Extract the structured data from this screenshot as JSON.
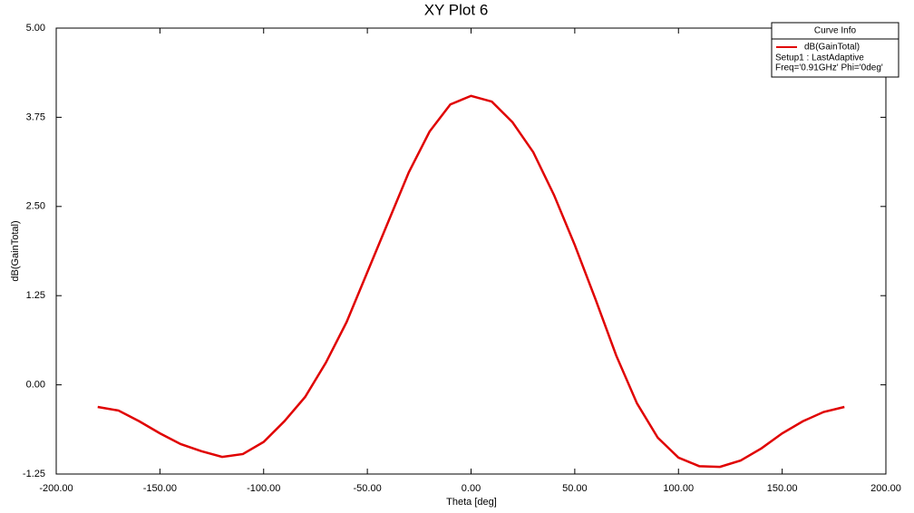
{
  "chart_data": {
    "type": "line",
    "title": "XY Plot 6",
    "x_label": "Theta [deg]",
    "y_label": "dB(GainTotal)",
    "x": [
      -180,
      -170,
      -160,
      -150,
      -140,
      -130,
      -120,
      -110,
      -100,
      -90,
      -80,
      -70,
      -60,
      -50,
      -40,
      -30,
      -20,
      -10,
      0,
      10,
      20,
      30,
      40,
      50,
      60,
      70,
      80,
      90,
      100,
      110,
      120,
      130,
      140,
      150,
      160,
      170,
      180
    ],
    "series": [
      {
        "name": "dB(GainTotal)",
        "color": "#e00000",
        "values": [
          -0.31,
          -0.36,
          -0.51,
          -0.68,
          -0.83,
          -0.93,
          -1.01,
          -0.97,
          -0.8,
          -0.51,
          -0.17,
          0.31,
          0.88,
          1.58,
          2.28,
          2.98,
          3.55,
          3.93,
          4.05,
          3.97,
          3.68,
          3.26,
          2.66,
          1.96,
          1.2,
          0.41,
          -0.26,
          -0.74,
          -1.02,
          -1.14,
          -1.15,
          -1.06,
          -0.89,
          -0.68,
          -0.51,
          -0.38,
          -0.31
        ]
      }
    ],
    "xlim": [
      -200,
      200
    ],
    "ylim": [
      -1.25,
      5
    ],
    "xticks": [
      {
        "value": -200,
        "label": "-200.00"
      },
      {
        "value": -150,
        "label": "-150.00"
      },
      {
        "value": -100,
        "label": "-100.00"
      },
      {
        "value": -50,
        "label": "-50.00"
      },
      {
        "value": 0,
        "label": "0.00"
      },
      {
        "value": 50,
        "label": "50.00"
      },
      {
        "value": 100,
        "label": "100.00"
      },
      {
        "value": 150,
        "label": "150.00"
      },
      {
        "value": 200,
        "label": "200.00"
      }
    ],
    "yticks": [
      {
        "value": -1.25,
        "label": "-1.25"
      },
      {
        "value": 0,
        "label": "0.00"
      },
      {
        "value": 1.25,
        "label": "1.25"
      },
      {
        "value": 2.5,
        "label": "2.50"
      },
      {
        "value": 3.75,
        "label": "3.75"
      },
      {
        "value": 5,
        "label": "5.00"
      }
    ],
    "legend_title": "Curve Info",
    "legend_notes": [
      "Setup1 : LastAdaptive",
      "Freq='0.91GHz' Phi='0deg'"
    ],
    "legend_position": "upper right",
    "grid": false
  }
}
